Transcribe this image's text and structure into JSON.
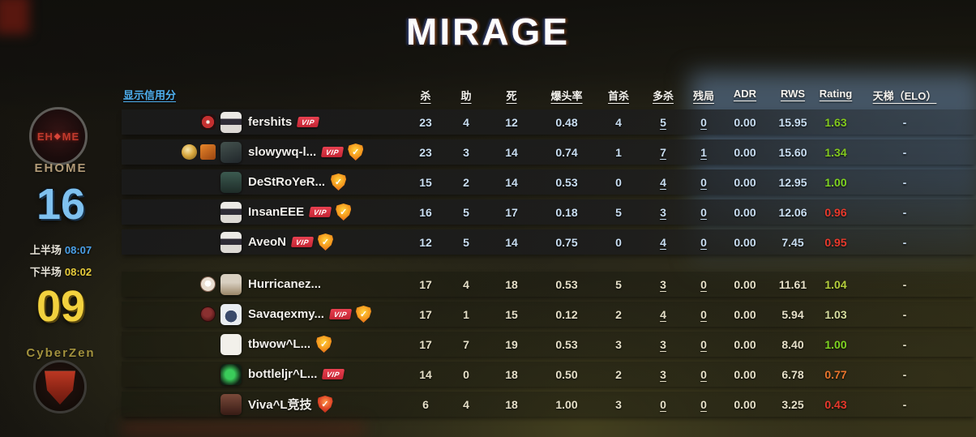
{
  "title": "MIRAGE",
  "credit_link": "显示信用分",
  "scoreboard": {
    "team_top": {
      "name": "EHOME",
      "score": "16",
      "logo_left": "EH",
      "logo_diamond": "◆",
      "logo_right": "ME"
    },
    "team_bottom": {
      "name": "CyberZen",
      "score": "09"
    },
    "half1": {
      "label": "上半场",
      "score": "08:07"
    },
    "half2": {
      "label": "下半场",
      "score": "08:02"
    }
  },
  "badges": {
    "vip": "VIP"
  },
  "table": {
    "columns": [
      "杀",
      "助",
      "死",
      "爆头率",
      "首杀",
      "多杀",
      "残局",
      "ADR",
      "RWS",
      "Rating",
      "天梯（ELO）"
    ],
    "teams": [
      {
        "name": "EHOME",
        "players": [
          {
            "name": "fershits",
            "vip": true,
            "shield": "",
            "medals": [
              "medal-red"
            ],
            "kills": "23",
            "assists": "4",
            "deaths": "12",
            "hs": "0.48",
            "first_kills": "4",
            "multi_kills": "5",
            "clutches": "0",
            "adr": "0.00",
            "rws": "15.95",
            "rating": "1.63",
            "rating_color": "#82c91e",
            "elo": "-"
          },
          {
            "name": "slowywq-l...",
            "vip": true,
            "shield": "orange",
            "medals": [
              "medal-gold",
              "medal-orange"
            ],
            "kills": "23",
            "assists": "3",
            "deaths": "14",
            "hs": "0.74",
            "first_kills": "1",
            "multi_kills": "7",
            "clutches": "1",
            "adr": "0.00",
            "rws": "15.60",
            "rating": "1.34",
            "rating_color": "#82c91e",
            "elo": "-"
          },
          {
            "name": "DeStRoYeR...",
            "vip": false,
            "shield": "orange",
            "medals": [],
            "kills": "15",
            "assists": "2",
            "deaths": "14",
            "hs": "0.53",
            "first_kills": "0",
            "multi_kills": "4",
            "clutches": "0",
            "adr": "0.00",
            "rws": "12.95",
            "rating": "1.00",
            "rating_color": "#7ed321",
            "elo": "-"
          },
          {
            "name": "InsanEEE",
            "vip": true,
            "shield": "orange",
            "medals": [],
            "kills": "16",
            "assists": "5",
            "deaths": "17",
            "hs": "0.18",
            "first_kills": "5",
            "multi_kills": "3",
            "clutches": "0",
            "adr": "0.00",
            "rws": "12.06",
            "rating": "0.96",
            "rating_color": "#e8392c",
            "elo": "-"
          },
          {
            "name": "AveoN",
            "vip": true,
            "shield": "orange",
            "medals": [],
            "kills": "12",
            "assists": "5",
            "deaths": "14",
            "hs": "0.75",
            "first_kills": "0",
            "multi_kills": "4",
            "clutches": "0",
            "adr": "0.00",
            "rws": "7.45",
            "rating": "0.95",
            "rating_color": "#e8392c",
            "elo": "-"
          }
        ]
      },
      {
        "name": "CyberZen",
        "players": [
          {
            "name": "Hurricanez...",
            "vip": false,
            "shield": "",
            "medals": [
              "medal-white"
            ],
            "kills": "17",
            "assists": "4",
            "deaths": "18",
            "hs": "0.53",
            "first_kills": "5",
            "multi_kills": "3",
            "clutches": "0",
            "adr": "0.00",
            "rws": "11.61",
            "rating": "1.04",
            "rating_color": "#b5cf3c",
            "elo": "-"
          },
          {
            "name": "Savaqexmy...",
            "vip": true,
            "shield": "orange",
            "medals": [
              "medal-darkred"
            ],
            "kills": "17",
            "assists": "1",
            "deaths": "15",
            "hs": "0.12",
            "first_kills": "2",
            "multi_kills": "4",
            "clutches": "0",
            "adr": "0.00",
            "rws": "5.94",
            "rating": "1.03",
            "rating_color": "#d6dd9e",
            "elo": "-"
          },
          {
            "name": "tbwow^L...",
            "vip": false,
            "shield": "orange",
            "medals": [],
            "kills": "17",
            "assists": "7",
            "deaths": "19",
            "hs": "0.53",
            "first_kills": "3",
            "multi_kills": "3",
            "clutches": "0",
            "adr": "0.00",
            "rws": "8.40",
            "rating": "1.00",
            "rating_color": "#7ed321",
            "elo": "-"
          },
          {
            "name": "bottleljr^L...",
            "vip": true,
            "shield": "",
            "medals": [],
            "kills": "14",
            "assists": "0",
            "deaths": "18",
            "hs": "0.50",
            "first_kills": "2",
            "multi_kills": "3",
            "clutches": "0",
            "adr": "0.00",
            "rws": "6.78",
            "rating": "0.77",
            "rating_color": "#e8742c",
            "elo": "-"
          },
          {
            "name": "Viva^L竞技",
            "vip": false,
            "shield": "red",
            "medals": [],
            "kills": "6",
            "assists": "4",
            "deaths": "18",
            "hs": "1.00",
            "first_kills": "3",
            "multi_kills": "0",
            "clutches": "0",
            "adr": "0.00",
            "rws": "3.25",
            "rating": "0.43",
            "rating_color": "#e8392c",
            "elo": "-"
          }
        ]
      }
    ]
  }
}
